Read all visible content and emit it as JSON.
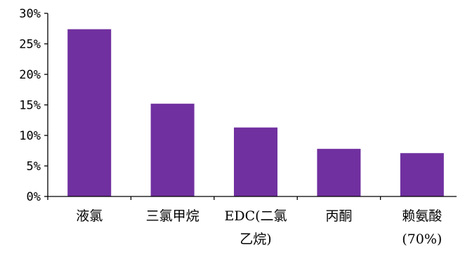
{
  "chart_data": {
    "type": "bar",
    "categories": [
      "液氯",
      "三氯甲烷",
      "EDC(二氯乙烷)",
      "丙酮",
      "赖氨酸(70%)"
    ],
    "category_lines": [
      [
        "液氯"
      ],
      [
        "三氯甲烷"
      ],
      [
        "EDC(二氯",
        "乙烷)"
      ],
      [
        "丙酮"
      ],
      [
        "赖氨酸",
        "(70%)"
      ]
    ],
    "values": [
      27.4,
      15.2,
      11.3,
      7.8,
      7.1
    ],
    "value_unit": "%",
    "ylim": [
      0,
      30
    ],
    "yticks": [
      0,
      5,
      10,
      15,
      20,
      25,
      30
    ],
    "ytick_labels": [
      "0%",
      "5%",
      "10%",
      "15%",
      "20%",
      "25%",
      "30%"
    ],
    "title": "",
    "xlabel": "",
    "ylabel": "",
    "grid": false,
    "legend": "none",
    "bar_color": "#7030A0",
    "axis_color": "#000000"
  }
}
